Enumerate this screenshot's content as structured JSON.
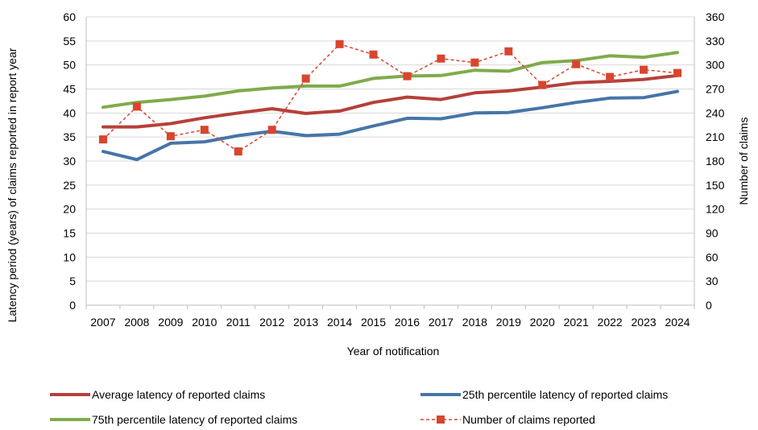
{
  "chart_data": {
    "type": "line",
    "x": [
      "2007",
      "2008",
      "2009",
      "2010",
      "2011",
      "2012",
      "2013",
      "2014",
      "2015",
      "2016",
      "2017",
      "2018",
      "2019",
      "2020",
      "2021",
      "2022",
      "2023",
      "2024"
    ],
    "xlabel": "Year of notification",
    "ylabel_left": "Latency period (years) of claims reported in report year",
    "ylabel_right": "Number of claims",
    "ylim_left": [
      0,
      60
    ],
    "ylim_right": [
      0,
      360
    ],
    "yticks_left": [
      "0",
      "5",
      "10",
      "15",
      "20",
      "25",
      "30",
      "35",
      "40",
      "45",
      "50",
      "55",
      "60"
    ],
    "yticks_right": [
      "0",
      "30",
      "60",
      "90",
      "120",
      "150",
      "180",
      "210",
      "240",
      "270",
      "300",
      "330",
      "360"
    ],
    "grid": true,
    "legend_position": "bottom",
    "series": [
      {
        "name": "Average latency of reported claims",
        "axis": "left",
        "style": "solid",
        "color": "#b5403a",
        "values": [
          37.1,
          37.1,
          37.8,
          39.0,
          40.0,
          40.9,
          39.9,
          40.4,
          42.2,
          43.3,
          42.8,
          44.2,
          44.6,
          45.4,
          46.3,
          46.6,
          47.0,
          47.8
        ]
      },
      {
        "name": "25th percentile latency of reported claims",
        "axis": "left",
        "style": "solid",
        "color": "#4675a8",
        "values": [
          32.0,
          30.3,
          33.7,
          34.0,
          35.3,
          36.2,
          35.3,
          35.6,
          37.3,
          38.9,
          38.8,
          40.0,
          40.1,
          41.1,
          42.2,
          43.1,
          43.2,
          44.5
        ]
      },
      {
        "name": "75th percentile latency of reported claims",
        "axis": "left",
        "style": "solid",
        "color": "#7fab4b",
        "values": [
          41.2,
          42.2,
          42.8,
          43.5,
          44.6,
          45.2,
          45.6,
          45.6,
          47.2,
          47.7,
          47.8,
          48.9,
          48.7,
          50.5,
          50.9,
          51.9,
          51.6,
          52.6
        ]
      },
      {
        "name": "Number of claims reported",
        "axis": "right",
        "style": "dashed",
        "marker": "square",
        "color": "#d9452e",
        "values": [
          207,
          248,
          211,
          219,
          192,
          219,
          283,
          326,
          313,
          286,
          308,
          303,
          317,
          275,
          301,
          285,
          294,
          290
        ]
      }
    ]
  }
}
